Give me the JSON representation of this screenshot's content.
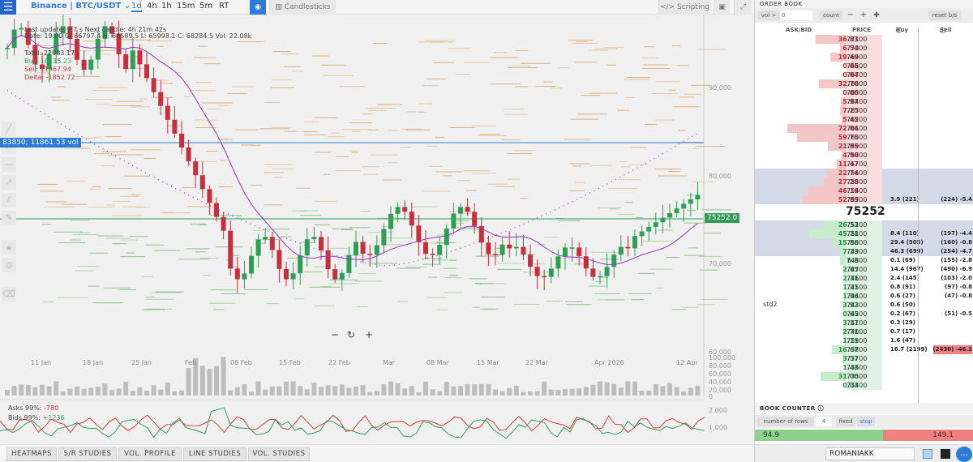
{
  "toolbar": {
    "exchange": "Binance | BTC/USDT",
    "timeframes": [
      "1d",
      "4h",
      "1h",
      "15m",
      "5m",
      "RT"
    ],
    "active_timeframe": "1d",
    "candlesticks_label": "Candlesticks",
    "scripting_label": "Scripting"
  },
  "chart": {
    "info": {
      "line1": "Last update: 9.7 s    Next candle: 4h 21m 42s",
      "line2": "Date: 19.00  O: 66797.4  H: 68589.5  L: 65998.1  C: 68284.5  Vol: 22.08k",
      "total": "Total: 22083.17",
      "buy": "Buy: 10115.23",
      "sell": "Sell: 11967.94",
      "delta": "Delta: -1852.72"
    },
    "crosshair_label": "83850; 11861.53 vol",
    "last_price_label": "75252.0",
    "y_ticks": [
      "90,000",
      "80,000",
      "70,000",
      "60,000"
    ],
    "vol_ticks": [
      "100,000",
      "80,000",
      "60,000",
      "40,000",
      "20,000",
      "0"
    ],
    "osc_ticks": [
      "2,000",
      "1,000"
    ],
    "x_ticks": [
      "11 Jan",
      "18 Jan",
      "25 Jan",
      "Feb",
      "08 Feb",
      "15 Feb",
      "22 Feb",
      "Mar",
      "08 Mar",
      "15 Mar",
      "22 Mar",
      "Apr 2026",
      "12 Apr"
    ],
    "asks_label": "Asks 99%: ",
    "asks_value": "-780",
    "bids_label": "Bids 99%: ",
    "bids_value": "+1236"
  },
  "bottom_tabs": [
    "HEATMAPS",
    "S/R STUDIES",
    "VOL. PROFILE",
    "LINE STUDIES",
    "VOL. STUDIES"
  ],
  "order_book": {
    "title": "ORDER BOOK",
    "vol_label": "vol >",
    "vol_value": "0",
    "count_label": "count",
    "reset_label": "reset b/s",
    "columns": {
      "askbid": "ASK/BID",
      "price": "PRICE",
      "buy": "Buy",
      "sell": "Sell"
    },
    "mid_price": "75252",
    "std_label": "std2",
    "asks": [
      {
        "amt": "36.83",
        "price": "77100",
        "buy": "",
        "sell": ""
      },
      {
        "amt": "6.54",
        "price": "77000",
        "buy": "",
        "sell": ""
      },
      {
        "amt": "19.49",
        "price": "76900",
        "buy": "",
        "sell": ""
      },
      {
        "amt": "0.05",
        "price": "76800",
        "buy": "",
        "sell": ""
      },
      {
        "amt": "0.04",
        "price": "76700",
        "buy": "",
        "sell": ""
      },
      {
        "amt": "32.70",
        "price": "76600",
        "buy": "",
        "sell": ""
      },
      {
        "amt": "0.00",
        "price": "76500",
        "buy": "",
        "sell": ""
      },
      {
        "amt": "5.97",
        "price": "76400",
        "buy": "",
        "sell": ""
      },
      {
        "amt": "7.25",
        "price": "76300",
        "buy": "",
        "sell": ""
      },
      {
        "amt": "5.45",
        "price": "76200",
        "buy": "",
        "sell": ""
      },
      {
        "amt": "72.06",
        "price": "76100",
        "buy": "",
        "sell": ""
      },
      {
        "amt": "59.75",
        "price": "76000",
        "buy": "",
        "sell": ""
      },
      {
        "amt": "21.85",
        "price": "75900",
        "buy": "",
        "sell": ""
      },
      {
        "amt": "4.90",
        "price": "75800",
        "buy": "",
        "sell": ""
      },
      {
        "amt": "11.47",
        "price": "75700",
        "buy": "",
        "sell": ""
      },
      {
        "amt": "22.74",
        "price": "75600",
        "buy": "",
        "sell": ""
      },
      {
        "amt": "27.28",
        "price": "75500",
        "buy": "",
        "sell": ""
      },
      {
        "amt": "46.19",
        "price": "75400",
        "buy": "",
        "sell": ""
      },
      {
        "amt": "52.89",
        "price": "75300",
        "buy": "3.9 (221)",
        "sell": "(224) -5.4"
      }
    ],
    "bids": [
      {
        "amt": "26.53",
        "price": "75200",
        "buy": "",
        "sell": ""
      },
      {
        "amt": "45.28",
        "price": "75100",
        "buy": "8.4 (110)",
        "sell": "(197) -4.4"
      },
      {
        "amt": "15.88",
        "price": "75000",
        "buy": "29.4 (505)",
        "sell": "(160) -0.8"
      },
      {
        "amt": "7.23",
        "price": "74900",
        "buy": "46.3 (699)",
        "sell": "(254) -4.7"
      },
      {
        "amt": "6.8",
        "price": "74800",
        "buy": "0.1 (69)",
        "sell": "(155) -2.8"
      },
      {
        "amt": "2.85",
        "price": "74700",
        "buy": "14.4 (967)",
        "sell": "(490) -6.9"
      },
      {
        "amt": "2.31",
        "price": "74600",
        "buy": "2.4 (145)",
        "sell": "(103) -2.0"
      },
      {
        "amt": "1.31",
        "price": "74500",
        "buy": "0.8 (91)",
        "sell": "(97) -0.8"
      },
      {
        "amt": "1.96",
        "price": "74400",
        "buy": "0.6 (27)",
        "sell": "(47) -0.8"
      },
      {
        "amt": "3.92",
        "price": "74300",
        "buy": "0.6 (50)",
        "sell": ""
      },
      {
        "amt": "0.65",
        "price": "74200",
        "buy": "0.2 (67)",
        "sell": "(51) -0.5"
      },
      {
        "amt": "3.17",
        "price": "74100",
        "buy": "0.3 (29)",
        "sell": ""
      },
      {
        "amt": "2.71",
        "price": "74000",
        "buy": "0.7 (17)",
        "sell": ""
      },
      {
        "amt": "1.11",
        "price": "73900",
        "buy": "1.6 (47)",
        "sell": ""
      },
      {
        "amt": "16.67",
        "price": "73800",
        "buy": "16.7 (2199)",
        "sell": "(2430) -46.2"
      },
      {
        "amt": "3.57",
        "price": "73700",
        "buy": "",
        "sell": ""
      },
      {
        "amt": "1.43",
        "price": "73600",
        "buy": "",
        "sell": ""
      },
      {
        "amt": "31.00",
        "price": "73500",
        "buy": "",
        "sell": ""
      },
      {
        "amt": "0.03",
        "price": "73400",
        "buy": "",
        "sell": ""
      }
    ]
  },
  "book_counter": {
    "title": "BOOK COUNTER",
    "rows_label": "number of rows",
    "rows_value": "4",
    "fixed_label": "fixed",
    "stop_label": "stop",
    "buy_value": "94.9",
    "sell_value": "149.1"
  },
  "user": {
    "name": "ROMANIAKK"
  },
  "colors": {
    "accent": "#2d7bd8",
    "up": "#2e9e55",
    "down": "#c62f3c",
    "ma": "#9b30c9",
    "ask_bar": "#f5c6c6",
    "bid_bar": "#c6eccb"
  }
}
